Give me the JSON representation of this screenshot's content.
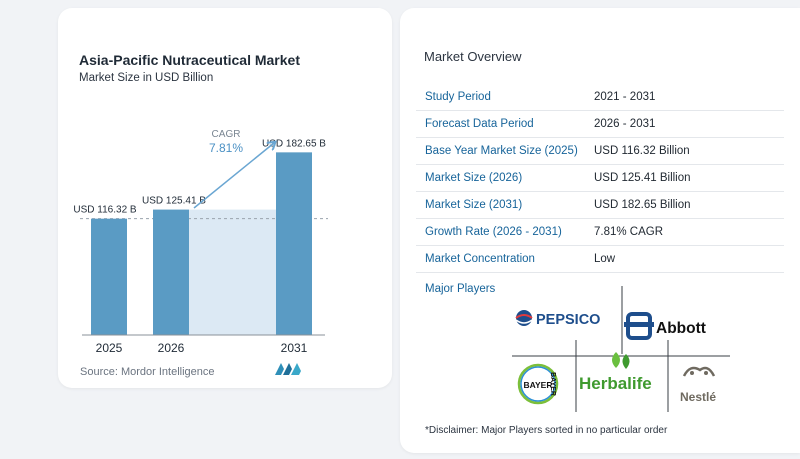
{
  "title": "Asia-Pacific Nutraceutical Market",
  "subtitle": "Market Size in USD Billion",
  "source": "Source:  Mordor Intelligence",
  "chart_data": {
    "type": "bar",
    "categories": [
      "2025",
      "2026",
      "2031"
    ],
    "values": [
      116.32,
      125.41,
      182.65
    ],
    "value_labels": [
      "USD 116.32 B",
      "USD 125.41 B",
      "USD 182.65 B"
    ],
    "cagr_label": "CAGR",
    "cagr_value": "7.81%",
    "title": "Asia-Pacific Nutraceutical Market",
    "subtitle": "Market Size in USD Billion",
    "colors": {
      "bar": "#5a9bc4",
      "area": "#dce9f4",
      "arrow": "#6aa6d2",
      "baseline": "#8a9199"
    }
  },
  "overview": {
    "title": "Market Overview",
    "rows": [
      {
        "label": "Study Period",
        "value": "2021 - 2031"
      },
      {
        "label": "Forecast Data Period",
        "value": "2026 - 2031"
      },
      {
        "label": "Base Year Market Size (2025)",
        "value": "USD 116.32 Billion"
      },
      {
        "label": "Market Size (2026)",
        "value": "USD 125.41 Billion"
      },
      {
        "label": "Market Size (2031)",
        "value": "USD 182.65 Billion"
      },
      {
        "label": "Growth Rate (2026 - 2031)",
        "value": "7.81% CAGR"
      },
      {
        "label": "Market Concentration",
        "value": "Low"
      }
    ]
  },
  "players": {
    "title": "Major Players",
    "logos": {
      "pepsico": "PEPSICO",
      "abbott": "Abbott",
      "bayer": "BAYER",
      "herbalife": "Herbalife",
      "nestle": "Nestlé"
    }
  },
  "disclaimer": "*Disclaimer: Major Players sorted in no particular order"
}
